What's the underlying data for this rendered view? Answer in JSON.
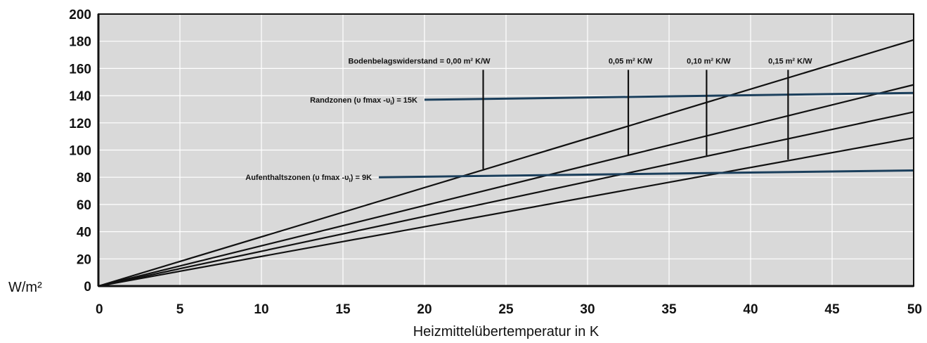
{
  "chart_data": {
    "type": "line",
    "title": "",
    "xlabel": "Heizmittelübertemperatur in K",
    "ylabel": "W/m²",
    "xlim": [
      0,
      50
    ],
    "ylim": [
      0,
      200
    ],
    "xticks": [
      0,
      5,
      10,
      15,
      20,
      25,
      30,
      35,
      40,
      45,
      50
    ],
    "yticks": [
      0,
      20,
      40,
      60,
      80,
      100,
      120,
      140,
      160,
      180,
      200
    ],
    "grid": true,
    "background": "#d9d9d9",
    "colors": {
      "resistance": "#111111",
      "zone": "#1b3f5c"
    },
    "series": [
      {
        "name": "Bodenbelagswiderstand = 0,00 m² K/W",
        "x": [
          0,
          50
        ],
        "y": [
          0,
          181
        ]
      },
      {
        "name": "0,05 m² K/W",
        "x": [
          0,
          50
        ],
        "y": [
          0,
          148
        ]
      },
      {
        "name": "0,10 m² K/W",
        "x": [
          0,
          50
        ],
        "y": [
          0,
          128
        ]
      },
      {
        "name": "0,15 m² K/W",
        "x": [
          0,
          50
        ],
        "y": [
          0,
          109
        ]
      }
    ],
    "zones": [
      {
        "name": "Randzonen (υ fmax -υ",
        "sub": "i",
        "tail": ") = 15K",
        "x": [
          20,
          50
        ],
        "y": [
          137,
          142
        ]
      },
      {
        "name": "Aufenthaltszonen (υ fmax -υ",
        "sub": "i",
        "tail": ") = 9K",
        "x": [
          17.2,
          50
        ],
        "y": [
          80,
          85
        ]
      }
    ],
    "annotations": [
      {
        "text": "Bodenbelagswiderstand = 0,00 m² K/W",
        "x": 23.6,
        "y_top": 159,
        "y_bottom": 86
      },
      {
        "text": "0,05 m² K/W",
        "x": 32.5,
        "y_top": 159,
        "y_bottom": 96
      },
      {
        "text": "0,10 m² K/W",
        "x": 37.3,
        "y_top": 159,
        "y_bottom": 96
      },
      {
        "text": "0,15 m² K/W",
        "x": 42.3,
        "y_top": 159,
        "y_bottom": 93
      }
    ]
  }
}
